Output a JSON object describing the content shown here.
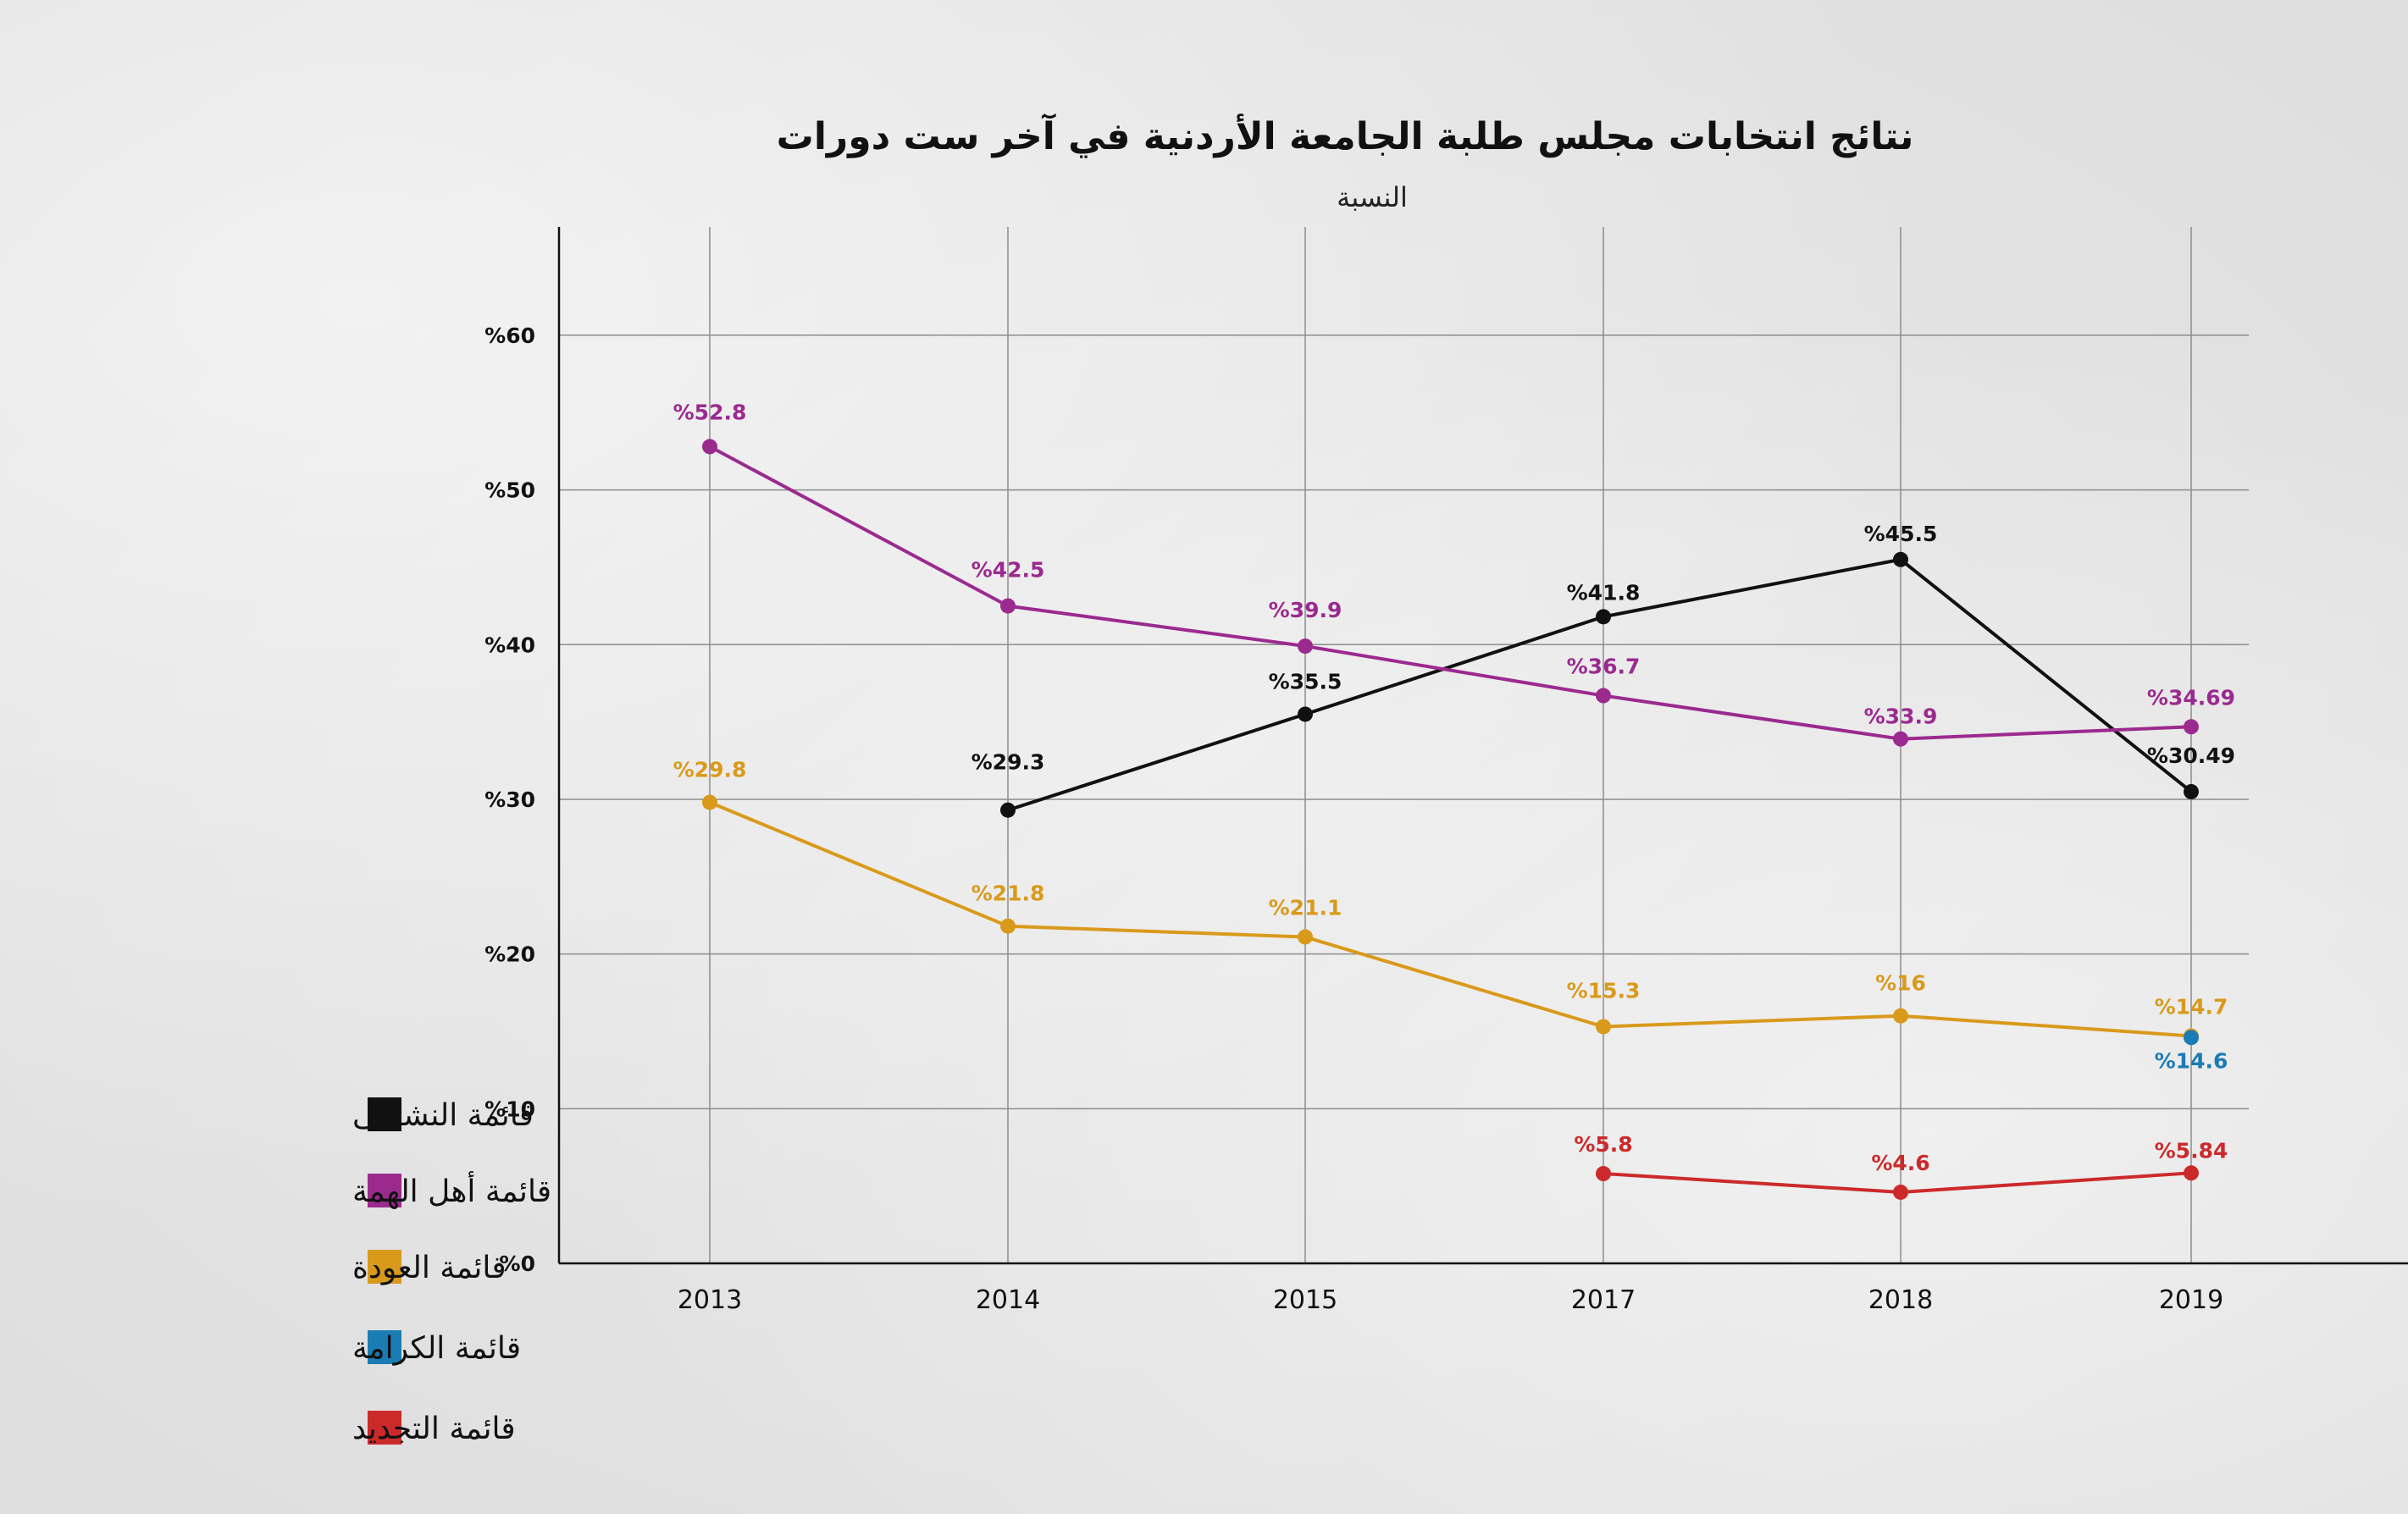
{
  "chart_data": {
    "type": "line",
    "title": "نتائج انتخابات مجلس طلبة الجامعة الأردنية في آخر ست دورات",
    "ylabel": "النسبة",
    "xlabel": "",
    "categories": [
      "2013",
      "2014",
      "2015",
      "2017",
      "2018",
      "2019"
    ],
    "ylim": [
      0,
      67
    ],
    "yticks": [
      0,
      10,
      20,
      30,
      40,
      50,
      60
    ],
    "ytick_labels": [
      "%0",
      "%10",
      "%20",
      "%30",
      "%40",
      "%50",
      "%60"
    ],
    "grid": true,
    "legend_position": "bottom-left",
    "series": [
      {
        "name": "قائمة النشامى",
        "color": "#111111",
        "values": [
          null,
          29.3,
          35.5,
          41.8,
          45.5,
          30.49
        ],
        "labels": [
          null,
          "%29.3",
          "%35.5",
          "%41.8",
          "%45.5",
          "%30.49"
        ]
      },
      {
        "name": "قائمة أهل الهمة",
        "color": "#9b2a8f",
        "values": [
          52.8,
          42.5,
          39.9,
          36.7,
          33.9,
          34.69
        ],
        "labels": [
          "%52.8",
          "%42.5",
          "%39.9",
          "%36.7",
          "%33.9",
          "%34.69"
        ]
      },
      {
        "name": "قائمة العودة",
        "color": "#d99a1b",
        "values": [
          29.8,
          21.8,
          21.1,
          15.3,
          16,
          14.7
        ],
        "labels": [
          "%29.8",
          "%21.8",
          "%21.1",
          "%15.3",
          "%16",
          "%14.7"
        ]
      },
      {
        "name": "قائمة الكرامة",
        "color": "#1b7cb4",
        "values": [
          null,
          null,
          null,
          null,
          null,
          14.6
        ],
        "labels": [
          null,
          null,
          null,
          null,
          null,
          "%14.6"
        ]
      },
      {
        "name": "قائمة التجديد",
        "color": "#cc2a2a",
        "values": [
          null,
          null,
          null,
          5.8,
          4.6,
          5.84
        ],
        "labels": [
          null,
          null,
          null,
          "%5.8",
          "%4.6",
          "%5.84"
        ]
      }
    ]
  }
}
